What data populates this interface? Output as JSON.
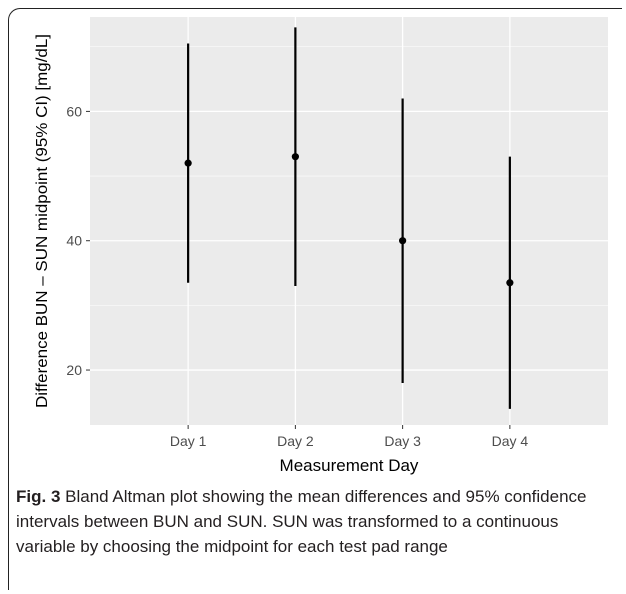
{
  "chart_data": {
    "type": "scatter",
    "categories": [
      "Day 1",
      "Day 2",
      "Day 3",
      "Day 4"
    ],
    "series": [
      {
        "points": [
          {
            "x": "Day 1",
            "y": 52,
            "lower": 33.5,
            "upper": 70.5
          },
          {
            "x": "Day 2",
            "y": 53,
            "lower": 33,
            "upper": 73
          },
          {
            "x": "Day 3",
            "y": 40,
            "lower": 18,
            "upper": 62
          },
          {
            "x": "Day 4",
            "y": 33.5,
            "lower": 14,
            "upper": 53
          }
        ]
      }
    ],
    "xlabel": "Measurement Day",
    "ylabel": "Difference BUN – SUN midpoint (95% CI) [mg/dL]",
    "yticks": [
      20,
      40,
      60
    ],
    "ylim": [
      11.5,
      74.6
    ],
    "grid": true,
    "colors": {
      "panel": "#ebebeb",
      "grid": "#ffffff",
      "mark": "#000000",
      "axis_text": "#4d4d4d"
    }
  },
  "caption": {
    "label": "Fig. 3",
    "text": "Bland Altman plot showing the mean differences and 95% confidence intervals between BUN and SUN. SUN was transformed to a continuous variable by choosing the midpoint for each test pad range"
  }
}
